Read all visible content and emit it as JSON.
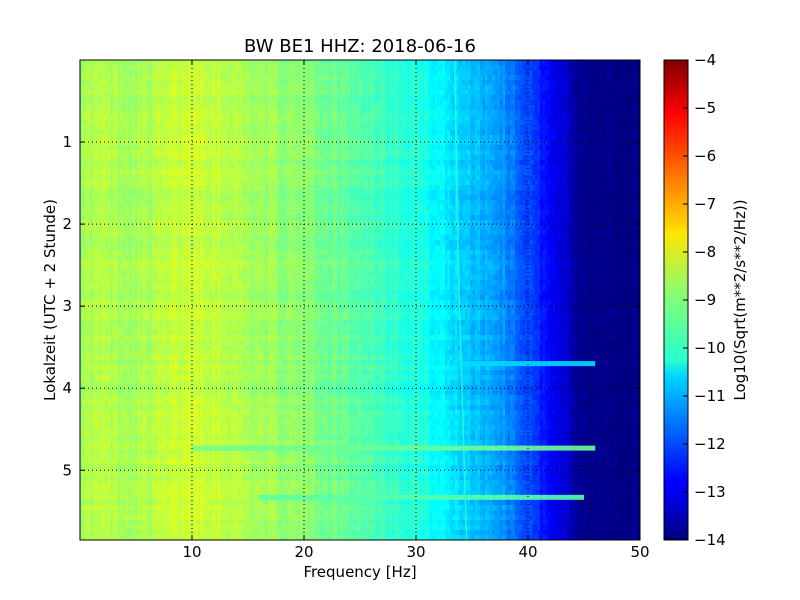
{
  "chart_data": {
    "type": "heatmap",
    "title": "BW BE1 HHZ: 2018-06-16",
    "xlabel": "Frequency [Hz]",
    "ylabel": "Lokalzeit (UTC + 2 Stunde)",
    "xlim": [
      0,
      50
    ],
    "ylim": [
      5.85,
      0
    ],
    "y_inverted": true,
    "x_ticks": [
      10,
      20,
      30,
      40,
      50
    ],
    "y_ticks": [
      1,
      2,
      3,
      4,
      5
    ],
    "grid": true,
    "colormap": "jet",
    "colorbar": {
      "label": "Log10(Sqrt(m**2/s**2/Hz))",
      "range": [
        -14,
        -4
      ],
      "ticks": [
        -14,
        -13,
        -12,
        -11,
        -10,
        -9,
        -8,
        -7,
        -6,
        -5,
        -4
      ]
    },
    "spectrum_profile": {
      "frequency_hz": [
        0,
        2,
        5,
        8,
        10,
        12,
        15,
        18,
        20,
        22,
        25,
        28,
        30,
        32,
        33.5,
        35,
        37,
        38.5,
        40,
        41.5,
        43,
        44,
        45,
        50
      ],
      "log_amplitude": [
        -8.6,
        -8.5,
        -8.6,
        -8.4,
        -8.2,
        -8.3,
        -8.6,
        -8.8,
        -8.9,
        -9.1,
        -9.4,
        -9.7,
        -9.9,
        -10.3,
        -10.6,
        -10.8,
        -11.1,
        -11.5,
        -12.1,
        -12.6,
        -13.1,
        -13.6,
        -13.95,
        -14.0
      ]
    },
    "features": [
      {
        "type": "horizontal_band",
        "time_h": 3.7,
        "freq_range": [
          33.5,
          46
        ],
        "log_amplitude": -10.6
      },
      {
        "type": "horizontal_band",
        "time_h": 4.73,
        "freq_range": [
          10,
          46
        ],
        "log_amplitude": -9.2
      },
      {
        "type": "horizontal_band",
        "time_h": 5.33,
        "freq_range": [
          16,
          45
        ],
        "log_amplitude": -9.4
      },
      {
        "type": "vertical_line",
        "freq_hz": 33.8,
        "log_amplitude": -9.8
      }
    ]
  }
}
